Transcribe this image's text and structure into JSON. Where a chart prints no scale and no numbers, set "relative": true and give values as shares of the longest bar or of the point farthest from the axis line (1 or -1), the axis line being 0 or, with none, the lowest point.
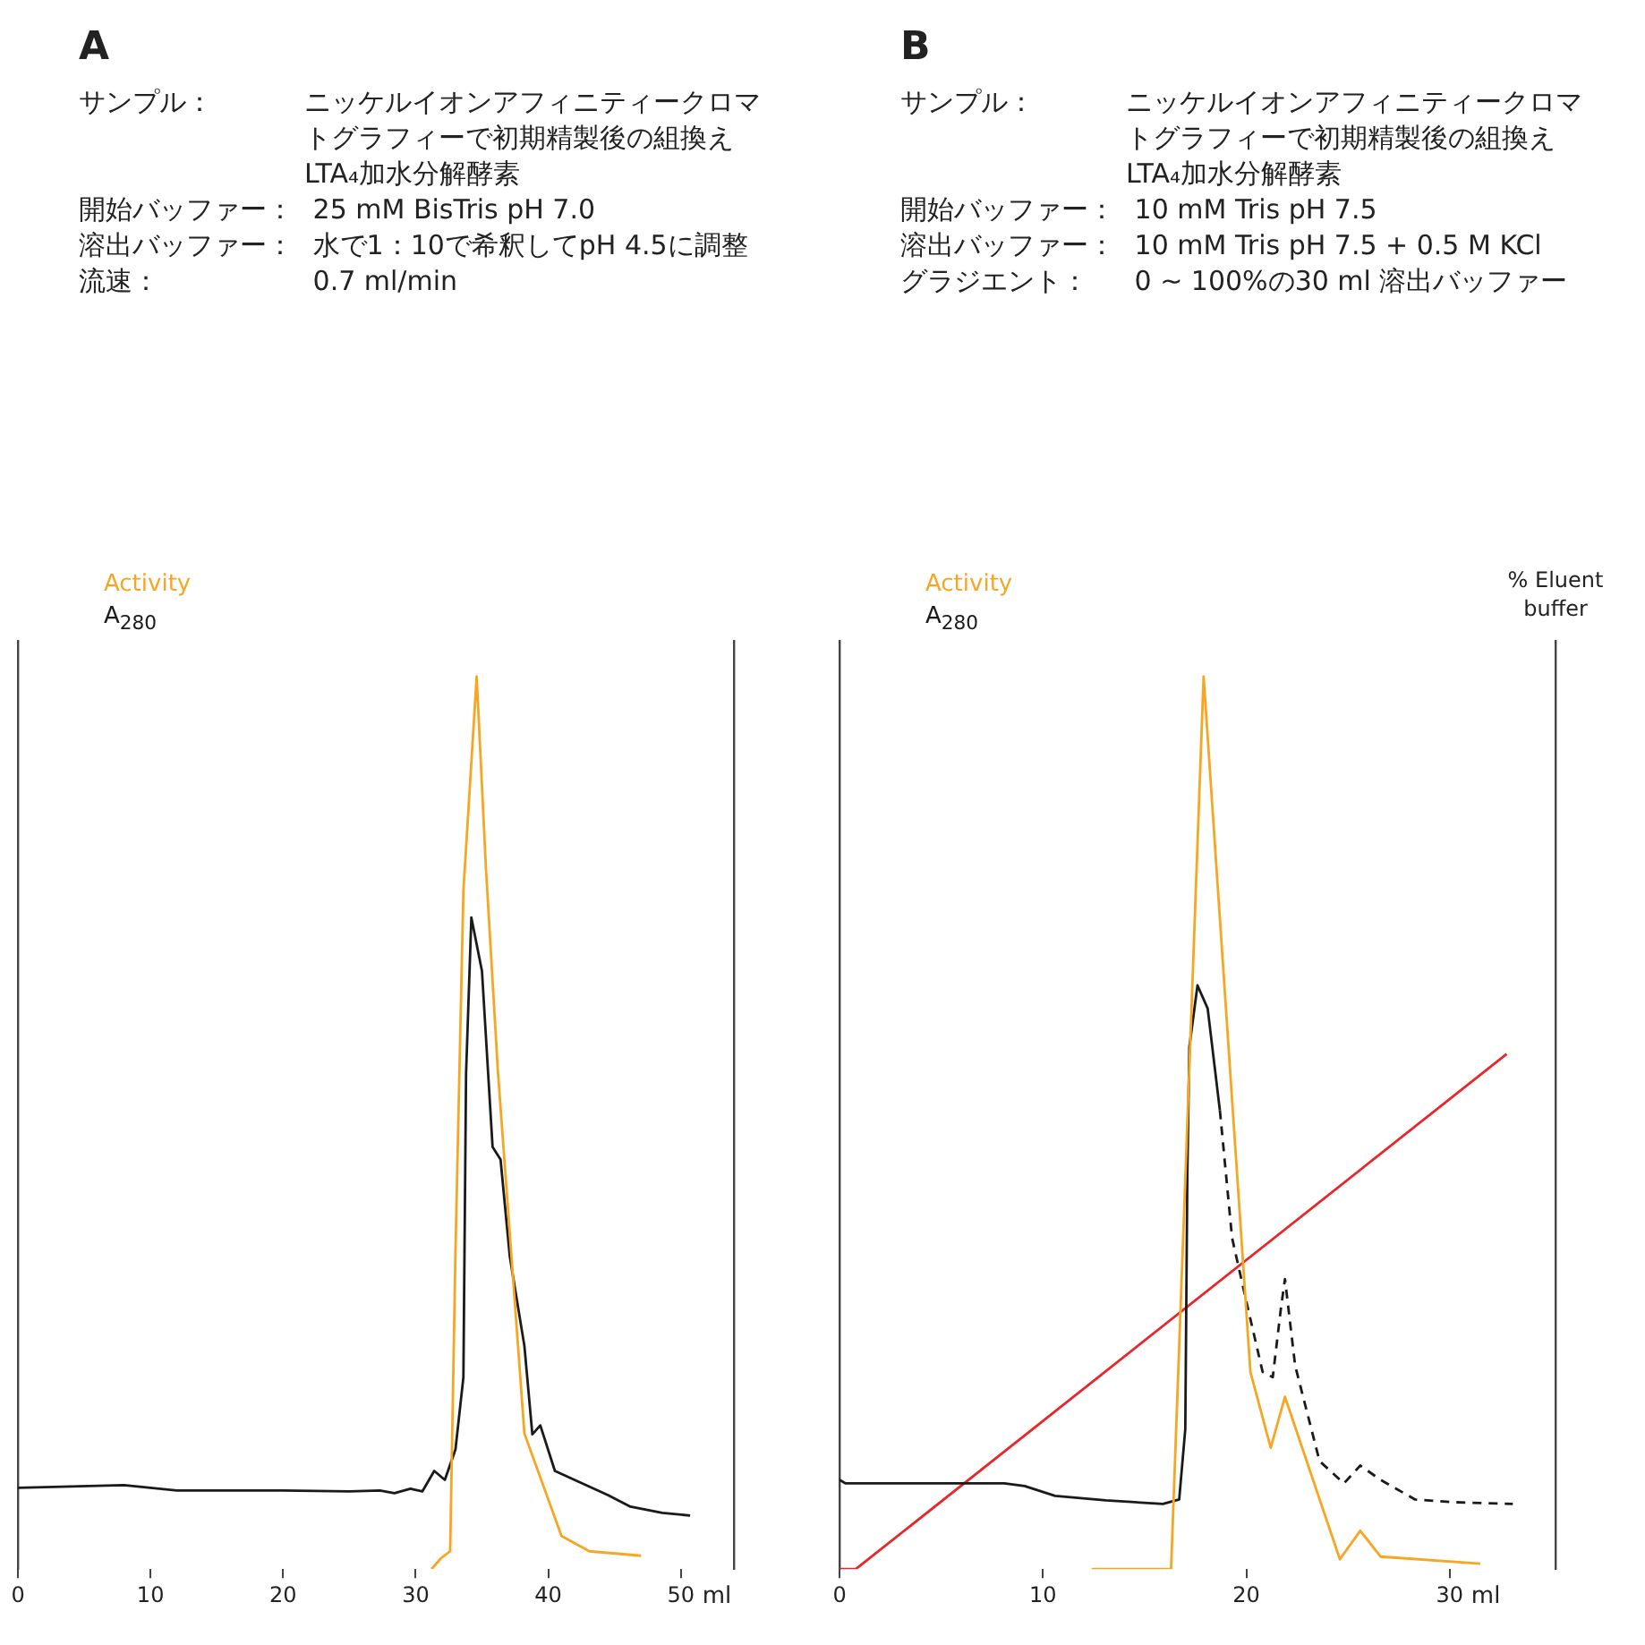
{
  "chart_data": [
    {
      "type": "line",
      "title": "A",
      "relative": true,
      "xlabel": "ml",
      "xlim": [
        0,
        54
      ],
      "xticks": [
        0,
        10,
        20,
        30,
        40,
        50
      ],
      "tick_labels": "x",
      "grid": false,
      "legend": "top left",
      "marker": "none",
      "annotations": [
        "サンプル：ニッケルイオンアフィニティークロマトグラフィーで初期精製後の組換えLTA₄加水分解酵素",
        "開始バッファー： 25 mM BisTris pH 7.0",
        "溶出バッファー： 水で1：10で希釈してpH 4.5に調整",
        "流速： 0.7 ml/min"
      ],
      "series": [
        {
          "name": "Activity",
          "color": "#f6a623",
          "x": [
            31.2,
            31.9,
            32.6,
            33.0,
            33.6,
            34.6,
            35.3,
            36.2,
            38.2,
            41.0,
            43.1,
            47.0
          ],
          "values": [
            0,
            0.012,
            0.02,
            0.355,
            0.76,
            1,
            0.785,
            0.558,
            0.152,
            0.037,
            0.02,
            0.015
          ]
        },
        {
          "name": "A$_{280}$",
          "color": "#1a1a1a",
          "x": [
            0,
            8,
            12,
            20,
            25,
            27.3,
            28.4,
            29.6,
            30.5,
            31.4,
            32.2,
            33.0,
            33.6,
            33.8,
            34.2,
            35.0,
            35.8,
            36.4,
            37.1,
            38.2,
            38.8,
            39.4,
            40.5,
            44.5,
            46.2,
            48.6,
            50.7
          ],
          "values": [
            0.091,
            0.094,
            0.088,
            0.088,
            0.087,
            0.088,
            0.085,
            0.09,
            0.087,
            0.11,
            0.1,
            0.134,
            0.215,
            0.555,
            0.73,
            0.67,
            0.473,
            0.459,
            0.35,
            0.25,
            0.151,
            0.161,
            0.11,
            0.083,
            0.07,
            0.063,
            0.06
          ]
        }
      ]
    },
    {
      "type": "line",
      "title": "B",
      "relative": true,
      "xlabel": "ml",
      "y2label": "% Eluent buffer",
      "xlim": [
        0,
        35.2
      ],
      "xticks": [
        0,
        10,
        20,
        30
      ],
      "tick_labels": "x",
      "grid": false,
      "legend": "top left",
      "marker": "none",
      "annotations": [
        "サンプル：ニッケルイオンアフィニティークロマトグラフィーで初期精製後の組換えLTA₄加水分解酵素",
        "開始バッファー： 10 mM Tris pH 7.5",
        "溶出バッファー： 10 mM Tris pH 7.5 + 0.5 M KCl",
        "グラジエント： 0 ~ 100%の30 ml 溶出バッファー"
      ],
      "series": [
        {
          "name": "Activity",
          "color": "#f6a623",
          "x": [
            12.4,
            16.3,
            17.9,
            20.2,
            21.2,
            21.9,
            24.6,
            25.6,
            26.6,
            31.5
          ],
          "values": [
            0,
            0,
            1,
            0.221,
            0.136,
            0.193,
            0.011,
            0.043,
            0.014,
            0.006
          ]
        },
        {
          "name": "A$_{280}$",
          "color": "#1a1a1a",
          "x": [
            0,
            0.3,
            8.1,
            9.1,
            10.6,
            13.1,
            15.9,
            16.7,
            17.0,
            17.1,
            17.2,
            17.6,
            18.1,
            18.7
          ],
          "values": [
            0.1,
            0.096,
            0.096,
            0.093,
            0.082,
            0.077,
            0.073,
            0.078,
            0.157,
            0.442,
            0.585,
            0.654,
            0.628,
            0.514
          ]
        },
        {
          "color": "#1a1a1a",
          "line_style": "dashed",
          "x": [
            18.7,
            19.3,
            20.0,
            20.8,
            21.3,
            21.7,
            21.9,
            22.4,
            23.6,
            24.8,
            25.6,
            26.6,
            28.3,
            30.2,
            33.1
          ],
          "values": [
            0.514,
            0.371,
            0.3,
            0.221,
            0.215,
            0.292,
            0.325,
            0.228,
            0.121,
            0.096,
            0.116,
            0.1,
            0.078,
            0.075,
            0.073
          ]
        },
        {
          "color": "#e8272a",
          "axis": "y2",
          "x": [
            0,
            0.8,
            32.8
          ],
          "values": [
            0,
            0,
            0.555
          ]
        }
      ]
    }
  ]
}
